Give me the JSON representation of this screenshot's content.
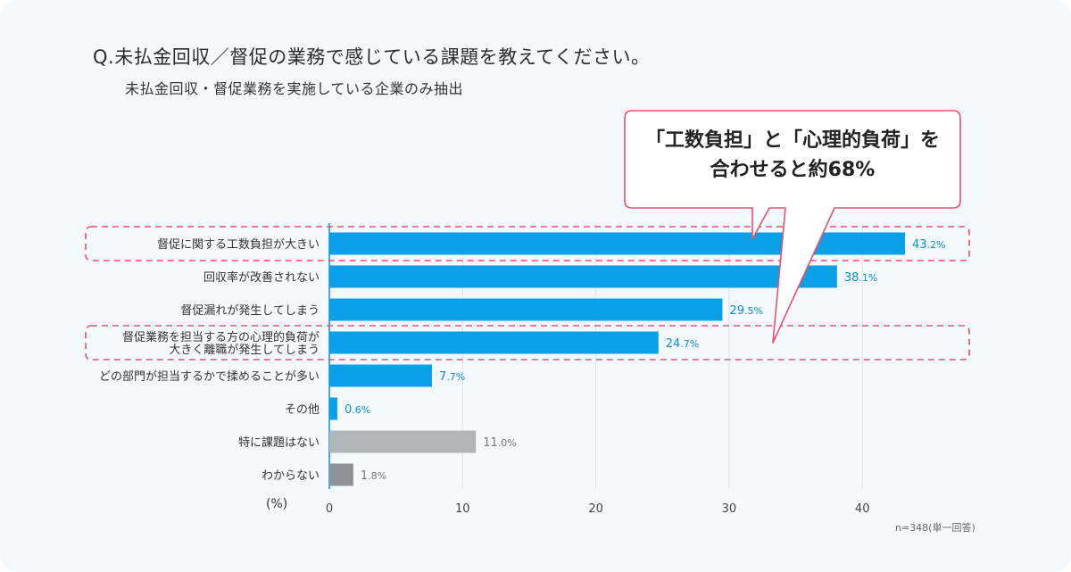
{
  "title": "Q.未払金回収／督促の業務で感じている課題を教えてください。",
  "subtitle": "未払金回収・督促業務を実施している企業のみ抽出",
  "callout": {
    "line1": "「工数負担」と「心理的負荷」を",
    "line2": "合わせると約68%"
  },
  "note": "n=348(単一回答)",
  "unit_label": "(%)",
  "colors": {
    "primary": "#0aa0e8",
    "neutral": "#b0b7bb",
    "dark_neutral": "#8b9196",
    "primary_text": "#0a90cc",
    "neutral_text": "#777777",
    "highlight": "#e8506c"
  },
  "chart_data": {
    "type": "bar",
    "orientation": "horizontal",
    "categories": [
      "督促に関する工数負担が大きい",
      "回収率が改善されない",
      "督促漏れが発生してしまう",
      "督促業務を担当する方の心理的負荷が|大きく離職が発生してしまう",
      "どの部門が担当するかで揉めることが多い",
      "その他",
      "特に課題はない",
      "わからない"
    ],
    "values": [
      43.2,
      38.1,
      29.5,
      24.7,
      7.7,
      0.6,
      11.0,
      1.8
    ],
    "value_labels": [
      "43.2%",
      "38.1%",
      "29.5%",
      "24.7%",
      "7.7%",
      "0.6%",
      "11.0%",
      "1.8%"
    ],
    "bar_colors": [
      "primary",
      "primary",
      "primary",
      "primary",
      "primary",
      "primary",
      "neutral",
      "dark_neutral"
    ],
    "highlighted": [
      0,
      3
    ],
    "xlim": [
      0,
      45
    ],
    "xticks": [
      0,
      10,
      20,
      30,
      40
    ],
    "xtick_labels": [
      "0",
      "10",
      "20",
      "30",
      "40"
    ],
    "grid": true
  }
}
